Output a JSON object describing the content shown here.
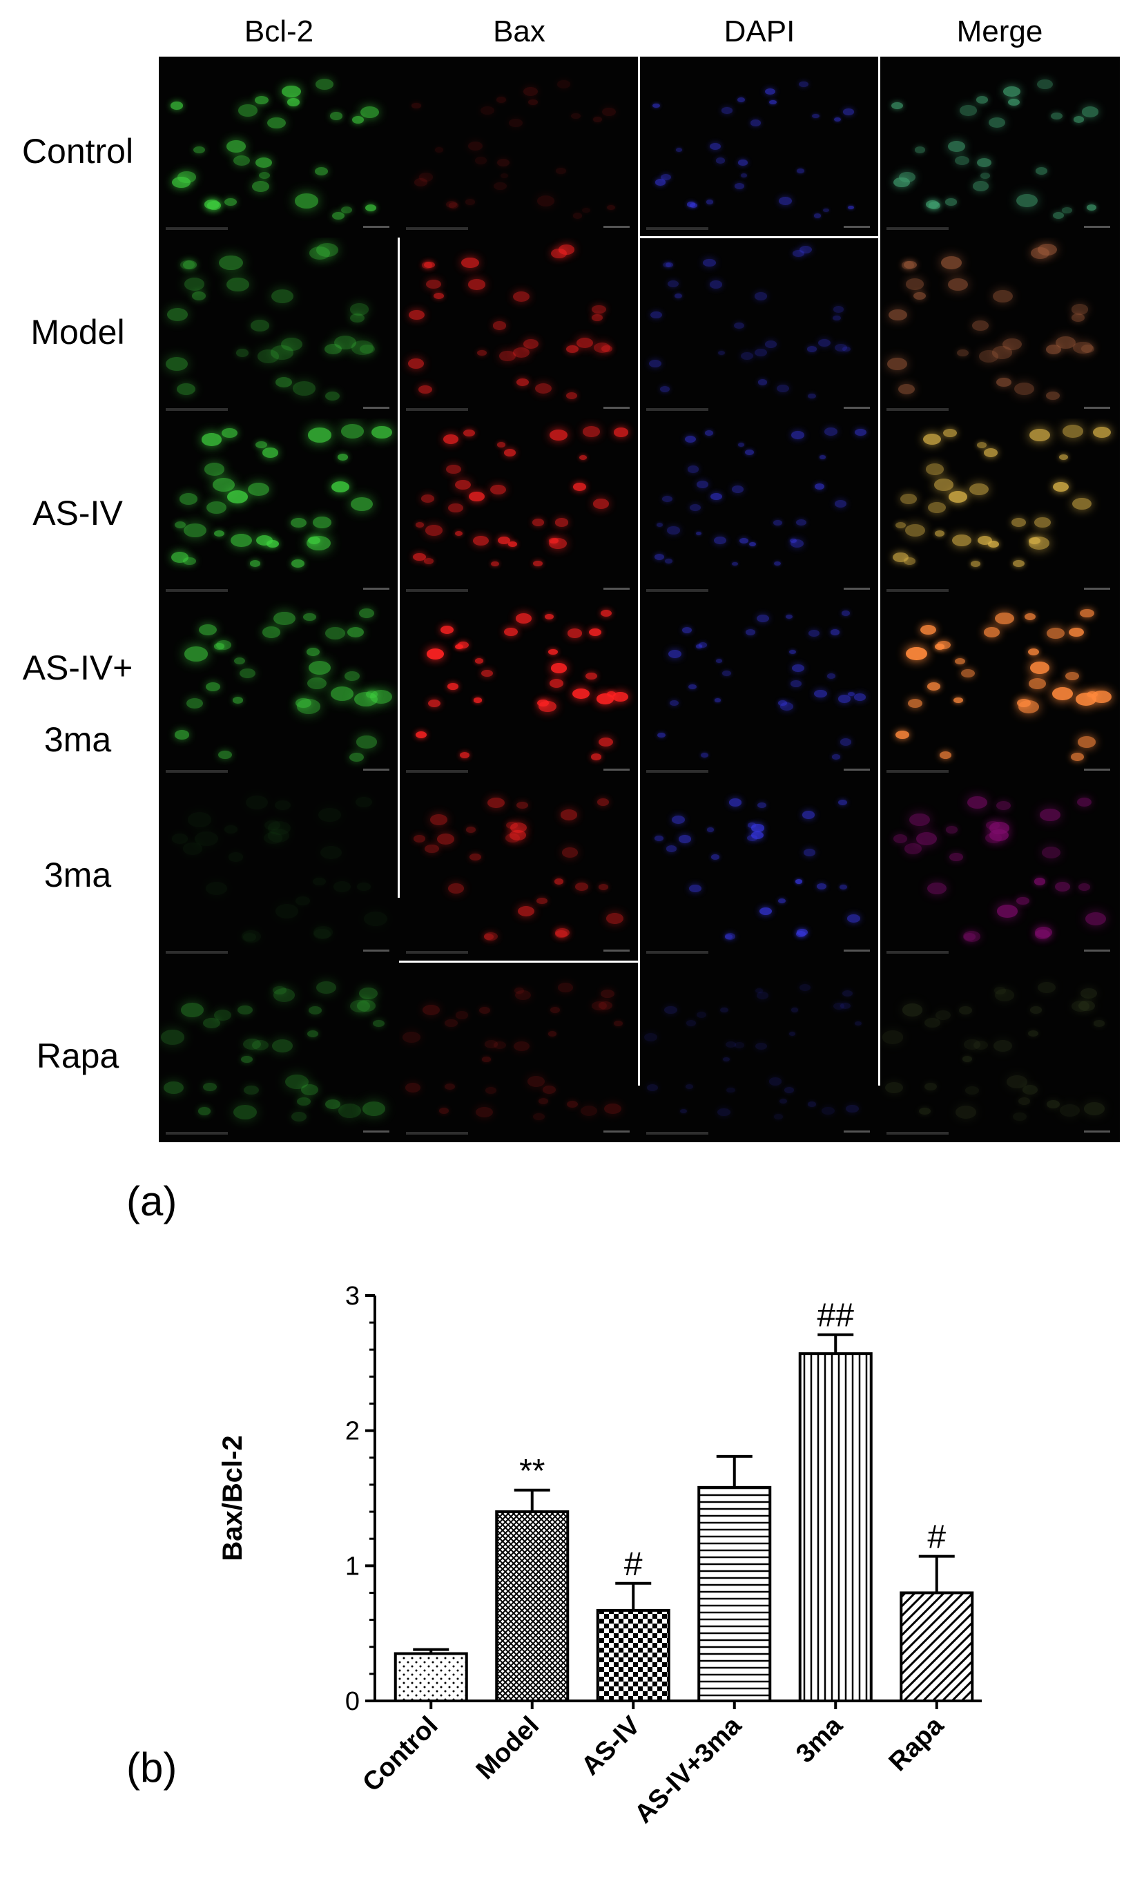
{
  "panel_a": {
    "tag": "(a)",
    "columns": [
      "Bcl-2",
      "Bax",
      "DAPI",
      "Merge"
    ],
    "rows": [
      {
        "lines": [
          "Control"
        ]
      },
      {
        "lines": [
          "Model"
        ]
      },
      {
        "lines": [
          "AS-IV"
        ]
      },
      {
        "lines": [
          "AS-IV+",
          "3ma"
        ]
      },
      {
        "lines": [
          "3ma"
        ]
      },
      {
        "lines": [
          "Rapa"
        ]
      }
    ],
    "channel_colors": {
      "Bcl-2": "#3fd23f",
      "Bax": "#ff2222",
      "DAPI": "#3838e6"
    },
    "signal_intensity": {
      "Bcl-2": [
        0.75,
        0.45,
        0.85,
        0.65,
        0.05,
        0.35
      ],
      "Bax": [
        0.15,
        0.65,
        0.8,
        1.0,
        0.55,
        0.2
      ],
      "DAPI": [
        0.6,
        0.45,
        0.6,
        0.6,
        0.75,
        0.2
      ]
    }
  },
  "panel_b": {
    "tag": "(b)"
  },
  "chart_data": {
    "type": "bar",
    "title": "",
    "xlabel": "",
    "ylabel": "Bax/Bcl-2",
    "ylim": [
      0,
      3
    ],
    "yticks": [
      "0",
      "1",
      "2",
      "3"
    ],
    "categories": [
      "Control",
      "Model",
      "AS-IV",
      "AS-IV+3ma",
      "3ma",
      "Rapa"
    ],
    "values": [
      0.35,
      1.4,
      0.67,
      1.58,
      2.57,
      0.8
    ],
    "errors": [
      0.03,
      0.16,
      0.2,
      0.23,
      0.14,
      0.27
    ],
    "annotations": [
      "",
      "**",
      "#",
      "",
      "##",
      "#"
    ],
    "patterns": [
      "dots",
      "crosshatch",
      "checker",
      "horizontal",
      "vertical",
      "diagonal"
    ],
    "legend": "none",
    "grid": false
  }
}
